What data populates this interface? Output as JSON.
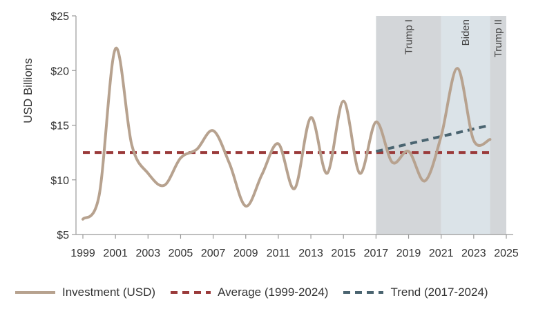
{
  "chart_data": {
    "type": "line",
    "ylabel": "USD Billions",
    "xlim": [
      1999,
      2025
    ],
    "ylim": [
      5,
      25
    ],
    "x_ticks": [
      1999,
      2001,
      2003,
      2005,
      2007,
      2009,
      2011,
      2013,
      2015,
      2017,
      2019,
      2021,
      2023,
      2025
    ],
    "x_tick_labels": [
      "1999",
      "2001",
      "2003",
      "2005",
      "2007",
      "2009",
      "2011",
      "2013",
      "2015",
      "2017",
      "2019",
      "2021",
      "2023",
      "2025"
    ],
    "y_ticks": [
      5,
      10,
      15,
      20,
      25
    ],
    "y_tick_labels": [
      "$5",
      "$10",
      "$15",
      "$20",
      "$25"
    ],
    "bands": [
      {
        "label": "Trump I",
        "start": 2017,
        "end": 2021,
        "color": "#d3d6d9"
      },
      {
        "label": "Biden",
        "start": 2021,
        "end": 2024,
        "color": "#dbe3e8"
      },
      {
        "label": "Trump II",
        "start": 2024,
        "end": 2025,
        "color": "#d3d6d9"
      }
    ],
    "series": [
      {
        "name": "Investment (USD)",
        "color": "#b7a28f",
        "style": "solid",
        "x": [
          1999,
          2000,
          2001,
          2002,
          2003,
          2004,
          2005,
          2006,
          2007,
          2008,
          2009,
          2010,
          2011,
          2012,
          2013,
          2014,
          2015,
          2016,
          2017,
          2018,
          2019,
          2020,
          2021,
          2022,
          2023,
          2024
        ],
        "values": [
          6.4,
          8.6,
          22.0,
          13.2,
          10.6,
          9.5,
          12.0,
          12.8,
          14.5,
          11.5,
          7.6,
          10.5,
          13.3,
          9.2,
          15.7,
          10.6,
          17.2,
          10.6,
          15.3,
          11.6,
          12.6,
          9.9,
          14.0,
          20.2,
          13.6,
          13.7
        ]
      },
      {
        "name": "Average (1999-2024)",
        "color": "#9a3a3a",
        "style": "dashed",
        "x": [
          1999,
          2024
        ],
        "values": [
          12.5,
          12.5
        ]
      },
      {
        "name": "Trend (2017-2024)",
        "color": "#4a6470",
        "style": "dashed",
        "x": [
          2017,
          2024
        ],
        "values": [
          12.6,
          15.0
        ]
      }
    ]
  }
}
